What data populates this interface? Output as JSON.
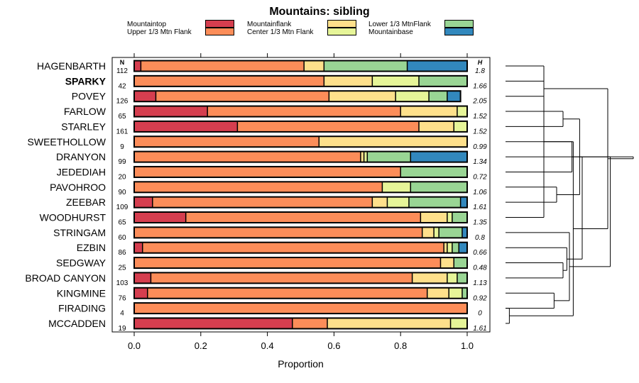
{
  "chart_data": {
    "type": "bar",
    "orientation": "horizontal",
    "stacked": true,
    "title": "Mountains: sibling",
    "xlabel": "Proportion",
    "xlim": [
      0,
      1
    ],
    "xticks": [
      "0.0",
      "0.2",
      "0.4",
      "0.6",
      "0.8",
      "1.0"
    ],
    "n_header": "N",
    "h_header": "H",
    "legend": [
      {
        "name": "Mountaintop",
        "color": "#d53e4f"
      },
      {
        "name": "Upper 1/3 Mtn Flank",
        "color": "#fc8d59"
      },
      {
        "name": "Mountainflank",
        "color": "#fee08b"
      },
      {
        "name": "Center 1/3 Mtn Flank",
        "color": "#e6f598"
      },
      {
        "name": "Lower 1/3 MtnFlank",
        "color": "#99d594"
      },
      {
        "name": "Mountainbase",
        "color": "#3288bd"
      }
    ],
    "categories": [
      {
        "name": "HAGENBARTH",
        "bold": false,
        "n": 112,
        "h": "1.8",
        "values": [
          0.02,
          0.49,
          0.06,
          0.0,
          0.25,
          0.18
        ]
      },
      {
        "name": "SPARKY",
        "bold": true,
        "n": 42,
        "h": "1.66",
        "values": [
          0.0,
          0.57,
          0.145,
          0.14,
          0.145,
          0.0
        ]
      },
      {
        "name": "POVEY",
        "bold": false,
        "n": 126,
        "h": "2.05",
        "values": [
          0.065,
          0.52,
          0.2,
          0.1,
          0.055,
          0.04
        ]
      },
      {
        "name": "FARLOW",
        "bold": false,
        "n": 65,
        "h": "1.52",
        "values": [
          0.22,
          0.58,
          0.17,
          0.03,
          0.0,
          0.0
        ]
      },
      {
        "name": "STARLEY",
        "bold": false,
        "n": 161,
        "h": "1.52",
        "values": [
          0.31,
          0.545,
          0.105,
          0.04,
          0.0,
          0.0
        ]
      },
      {
        "name": "SWEETHOLLOW",
        "bold": false,
        "n": 9,
        "h": "0.99",
        "values": [
          0.0,
          0.555,
          0.445,
          0.0,
          0.0,
          0.0
        ]
      },
      {
        "name": "DRANYON",
        "bold": false,
        "n": 99,
        "h": "1.34",
        "values": [
          0.0,
          0.68,
          0.01,
          0.01,
          0.13,
          0.17
        ]
      },
      {
        "name": "JEDEDIAH",
        "bold": false,
        "n": 20,
        "h": "0.72",
        "values": [
          0.0,
          0.8,
          0.0,
          0.0,
          0.2,
          0.0
        ]
      },
      {
        "name": "PAVOHROO",
        "bold": false,
        "n": 90,
        "h": "1.06",
        "values": [
          0.0,
          0.745,
          0.0,
          0.085,
          0.17,
          0.0
        ]
      },
      {
        "name": "ZEEBAR",
        "bold": false,
        "n": 109,
        "h": "1.61",
        "values": [
          0.055,
          0.66,
          0.045,
          0.065,
          0.155,
          0.02
        ]
      },
      {
        "name": "WOODHURST",
        "bold": false,
        "n": 65,
        "h": "1.35",
        "values": [
          0.155,
          0.705,
          0.08,
          0.015,
          0.045,
          0.0
        ]
      },
      {
        "name": "STRINGAM",
        "bold": false,
        "n": 60,
        "h": "0.8",
        "values": [
          0.0,
          0.865,
          0.035,
          0.015,
          0.07,
          0.015
        ]
      },
      {
        "name": "EZBIN",
        "bold": false,
        "n": 86,
        "h": "0.66",
        "values": [
          0.025,
          0.905,
          0.01,
          0.015,
          0.02,
          0.025
        ]
      },
      {
        "name": "SEDGWAY",
        "bold": false,
        "n": 25,
        "h": "0.48",
        "values": [
          0.0,
          0.92,
          0.04,
          0.0,
          0.04,
          0.0
        ]
      },
      {
        "name": "BROAD CANYON",
        "bold": false,
        "n": 103,
        "h": "1.13",
        "values": [
          0.05,
          0.785,
          0.105,
          0.03,
          0.03,
          0.0
        ]
      },
      {
        "name": "KINGMINE",
        "bold": false,
        "n": 76,
        "h": "0.92",
        "values": [
          0.04,
          0.84,
          0.065,
          0.04,
          0.015,
          0.0
        ]
      },
      {
        "name": "FIRADING",
        "bold": false,
        "n": 4,
        "h": "0",
        "values": [
          0.0,
          1.0,
          0.0,
          0.0,
          0.0,
          0.0
        ]
      },
      {
        "name": "MCCADDEN",
        "bold": false,
        "n": 19,
        "h": "1.61",
        "values": [
          0.475,
          0.105,
          0.37,
          0.05,
          0.0,
          0.0
        ]
      }
    ],
    "dendrogram": {
      "merges": [
        [
          16,
          17,
          0.03
        ],
        [
          10,
          0,
          0.3
        ],
        [
          13,
          14,
          0.45
        ],
        [
          15,
          16,
          0.38
        ],
        [
          8,
          9,
          0.4
        ],
        [
          3,
          4,
          0.45
        ],
        [
          1,
          2,
          0.3
        ],
        [
          5,
          18,
          0.53
        ],
        [
          12,
          20,
          0.48
        ],
        [
          7,
          19,
          0.52
        ],
        [
          11,
          21,
          0.5
        ],
        [
          22,
          23,
          0.58
        ],
        [
          24,
          25,
          0.8
        ],
        [
          6,
          26,
          0.6
        ],
        [
          27,
          28,
          0.82
        ],
        [
          29,
          30,
          1.0
        ]
      ]
    }
  }
}
